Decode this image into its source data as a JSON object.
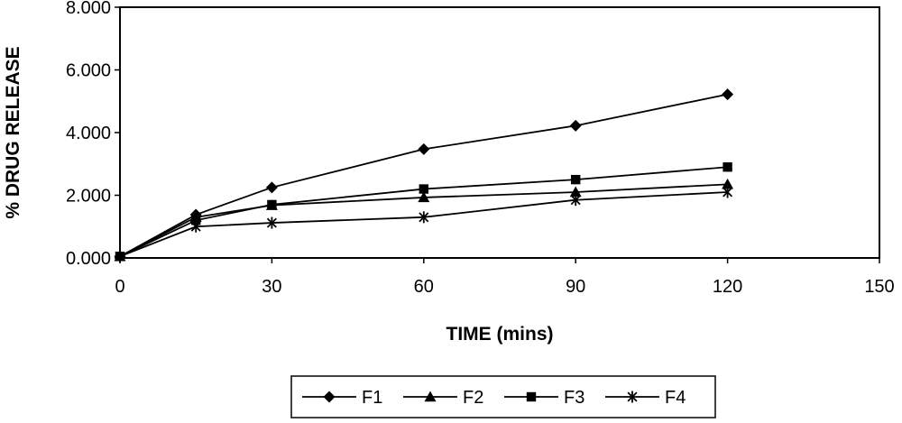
{
  "chart_data": {
    "type": "line",
    "title": "",
    "xlabel": "TIME (mins)",
    "ylabel": "% DRUG RELEASE",
    "xlim": [
      0,
      150
    ],
    "ylim": [
      0,
      8
    ],
    "x_ticks": [
      "0",
      "30",
      "60",
      "90",
      "120",
      "150"
    ],
    "y_ticks": [
      "0.000",
      "2.000",
      "4.000",
      "6.000",
      "8.000"
    ],
    "grid": false,
    "legend_position": "bottom",
    "series": [
      {
        "name": "F1",
        "marker": "diamond",
        "x": [
          0,
          15,
          30,
          60,
          90,
          120
        ],
        "y": [
          0.05,
          1.38,
          2.25,
          3.47,
          4.22,
          5.22
        ]
      },
      {
        "name": "F2",
        "marker": "triangle",
        "x": [
          0,
          15,
          30,
          60,
          90,
          120
        ],
        "y": [
          0.05,
          1.3,
          1.68,
          1.93,
          2.1,
          2.35
        ]
      },
      {
        "name": "F3",
        "marker": "square",
        "x": [
          0,
          15,
          30,
          60,
          90,
          120
        ],
        "y": [
          0.05,
          1.2,
          1.7,
          2.2,
          2.5,
          2.9
        ]
      },
      {
        "name": "F4",
        "marker": "asterisk",
        "x": [
          0,
          15,
          30,
          60,
          90,
          120
        ],
        "y": [
          0.05,
          1.0,
          1.12,
          1.3,
          1.85,
          2.1
        ]
      }
    ]
  }
}
